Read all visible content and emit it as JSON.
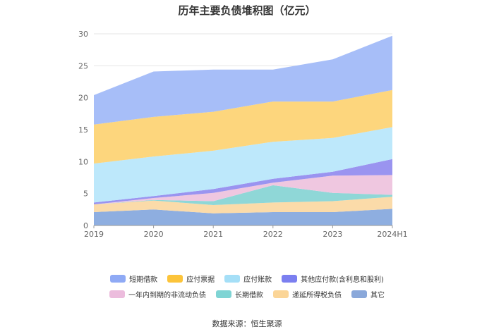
{
  "chart_data": {
    "type": "area",
    "stacked": true,
    "title": "历年主要负债堆积图（亿元）",
    "categories": [
      "2019",
      "2020",
      "2021",
      "2022",
      "2023",
      "2024H1"
    ],
    "ylim": [
      0,
      30
    ],
    "yticks": [
      0,
      5,
      10,
      15,
      20,
      25,
      30
    ],
    "grid": true,
    "legend_position": "bottom",
    "series": [
      {
        "name": "其它",
        "color": "#8eaee0",
        "values": [
          2.1,
          2.5,
          1.9,
          2.1,
          2.1,
          2.6
        ]
      },
      {
        "name": "递延所得税负债",
        "color": "#fbdba9",
        "values": [
          1.2,
          1.4,
          1.3,
          1.5,
          1.7,
          1.9
        ]
      },
      {
        "name": "长期借款",
        "color": "#8fd7d7",
        "values": [
          0.0,
          0.1,
          0.6,
          2.7,
          1.3,
          0.3
        ]
      },
      {
        "name": "一年内到期的非流动负债",
        "color": "#efc7e0",
        "values": [
          0.0,
          0.3,
          1.3,
          0.4,
          2.7,
          3.1
        ]
      },
      {
        "name": "其他应付款(含利息和股利)",
        "color": "#9a94f0",
        "values": [
          0.3,
          0.3,
          0.6,
          0.6,
          0.6,
          2.5
        ]
      },
      {
        "name": "应付账款",
        "color": "#bde8fb",
        "values": [
          6.1,
          6.2,
          6.0,
          5.8,
          5.3,
          5.0
        ]
      },
      {
        "name": "应付票据",
        "color": "#fdd67d",
        "values": [
          6.1,
          6.2,
          6.1,
          6.3,
          5.7,
          5.8
        ]
      },
      {
        "name": "短期借款",
        "color": "#a7bef8",
        "values": [
          4.6,
          7.1,
          6.6,
          5.0,
          6.6,
          8.5
        ]
      }
    ]
  },
  "legend": {
    "row1": [
      {
        "name": "短期借款",
        "color": "#8faaf5"
      },
      {
        "name": "应付票据",
        "color": "#fcc43a"
      },
      {
        "name": "应付账款",
        "color": "#a5dff7"
      },
      {
        "name": "其他应付款(含利息和股利)",
        "color": "#7b7ff0"
      }
    ],
    "row2": [
      {
        "name": "一年内到期的非流动负债",
        "color": "#ecbcdd"
      },
      {
        "name": "长期借款",
        "color": "#7fd4d4"
      },
      {
        "name": "递延所得税负债",
        "color": "#fbd597"
      },
      {
        "name": "其它",
        "color": "#8aa8da"
      }
    ]
  },
  "source": "数据来源：恒生聚源"
}
